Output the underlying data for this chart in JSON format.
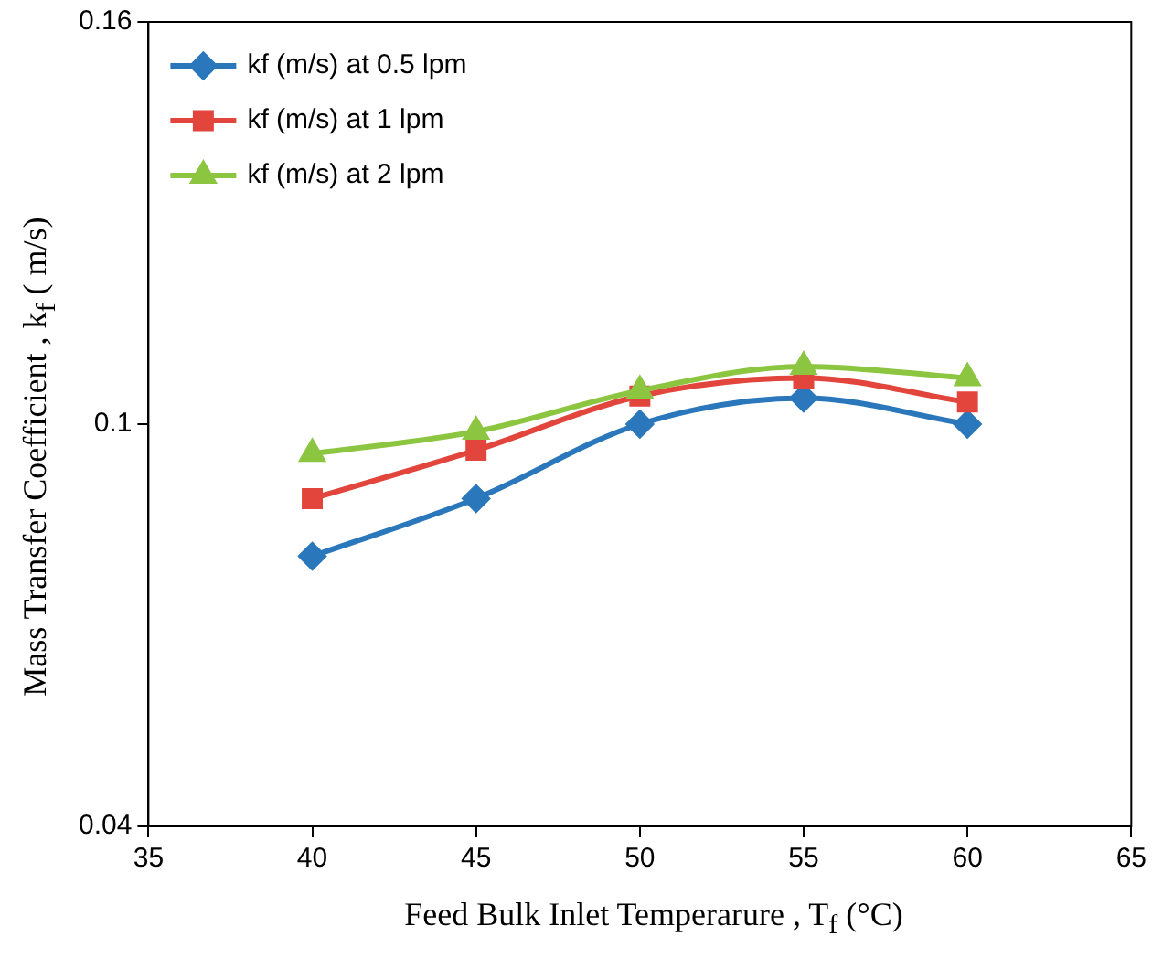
{
  "chart_data": {
    "type": "line",
    "xlabel": "Feed Bulk Inlet Temperarure , T$_{f}$ (°C)",
    "ylabel": "Mass Transfer Coefficient , k$_{f}$ ( m/s)",
    "x": [
      40,
      45,
      50,
      55,
      60
    ],
    "xlim": [
      35,
      65
    ],
    "xticks": [
      35,
      40,
      45,
      50,
      55,
      60,
      65
    ],
    "ylim": [
      0.04,
      0.16
    ],
    "yticks": [
      0.04,
      0.1,
      0.16
    ],
    "grid": false,
    "legend": "top left",
    "line_style": "solid",
    "series": [
      {
        "name": "kf (m/s) at 0.5 lpm",
        "color": "#2a77bb",
        "marker": "diamond",
        "values": [
          0.0803,
          0.0889,
          0.1,
          0.1039,
          0.1
        ]
      },
      {
        "name": "kf (m/s) at 1 lpm",
        "color": "#e2453c",
        "marker": "square",
        "values": [
          0.0889,
          0.0961,
          0.1042,
          0.1069,
          0.1033
        ]
      },
      {
        "name": "kf (m/s) at 2 lpm",
        "color": "#8cc540",
        "marker": "triangle",
        "values": [
          0.0956,
          0.0989,
          0.105,
          0.1086,
          0.1069
        ]
      }
    ]
  }
}
